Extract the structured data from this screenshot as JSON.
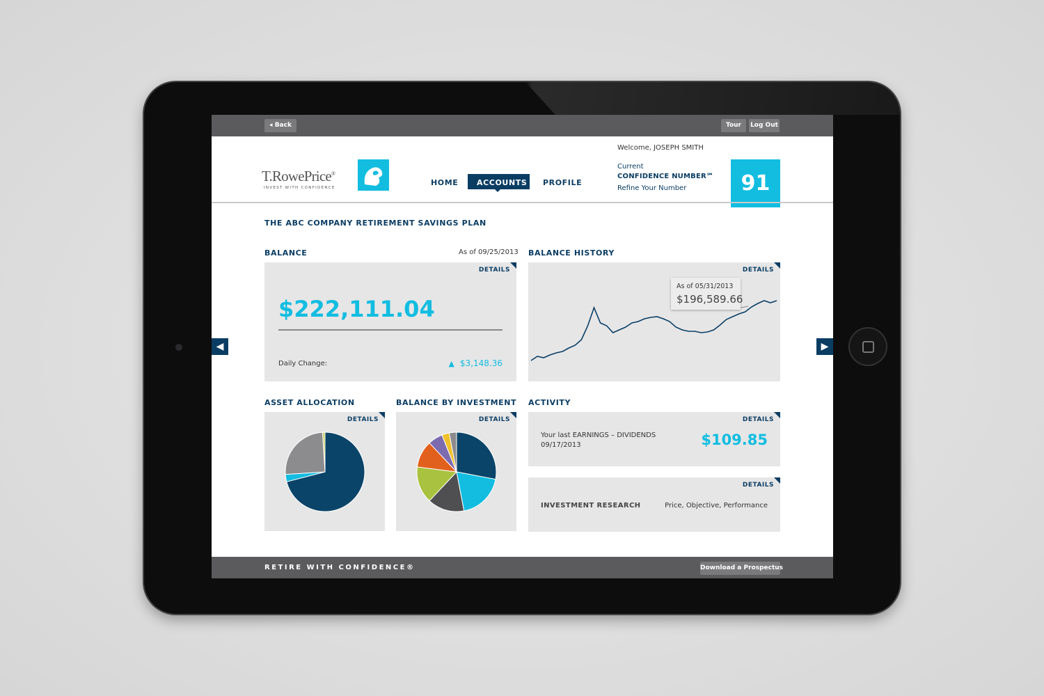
{
  "top_bar": {
    "back": "Back",
    "tour": "Tour",
    "logout": "Log Out"
  },
  "header": {
    "logo": "T.RowePrice",
    "logo_mark": "®",
    "tagline": "INVEST WITH CONFIDENCE",
    "nav": [
      "HOME",
      "ACCOUNTS",
      "PROFILE"
    ],
    "welcome": "Welcome, JOSEPH SMITH",
    "confidence_current": "Current",
    "confidence_label": "CONFIDENCE NUMBER℠",
    "confidence_link": "Refine Your Number",
    "confidence_number": 91
  },
  "plan_title": "THE ABC COMPANY RETIREMENT SAVINGS PLAN",
  "balance": {
    "title": "BALANCE",
    "as_of": "As of 09/25/2013",
    "details": "DETAILS",
    "amount": "$222,111.04",
    "daily_change_label": "Daily Change:",
    "daily_change": "$3,148.36"
  },
  "balance_history": {
    "title": "BALANCE HISTORY",
    "details": "DETAILS",
    "tooltip_date": "As of 05/31/2013",
    "tooltip_value": "$196,589.66",
    "chart_data": {
      "type": "line",
      "color": "#0b3d63",
      "values": [
        150000,
        153600,
        152400,
        154800,
        156600,
        157800,
        160800,
        163200,
        168000,
        180000,
        195600,
        182400,
        180000,
        174000,
        176400,
        178800,
        182400,
        183600,
        186000,
        187200,
        187800,
        186000,
        183600,
        178800,
        176400,
        175200,
        175200,
        174000,
        174600,
        176400,
        180600,
        185400,
        187800,
        190200,
        192000,
        196200,
        199200,
        201600,
        199800,
        201600
      ]
    }
  },
  "asset_allocation": {
    "title": "ASSET ALLOCATION",
    "details": "DETAILS",
    "chart_data": {
      "type": "pie",
      "values": [
        71,
        3,
        25,
        1
      ],
      "colors": [
        "#0b4469",
        "#12bde0",
        "#8c8c8e",
        "#c9d36e"
      ]
    }
  },
  "balance_by_investment": {
    "title": "BALANCE BY INVESTMENT",
    "details": "DETAILS",
    "chart_data": {
      "type": "pie",
      "values": [
        28,
        19,
        15,
        15,
        11,
        6,
        3,
        3
      ],
      "colors": [
        "#0b4469",
        "#12bde0",
        "#4f4f51",
        "#a9c23f",
        "#e2601d",
        "#7d6bb0",
        "#f0c02c",
        "#8c8c8e"
      ]
    }
  },
  "activity": {
    "title": "ACTIVITY",
    "details": "DETAILS",
    "text": "Your last EARNINGS – DIVIDENDS",
    "date": "09/17/2013",
    "amount": "$109.85"
  },
  "research": {
    "details": "DETAILS",
    "title": "INVESTMENT RESEARCH",
    "text": "Price, Objective, Performance"
  },
  "footer": {
    "tagline": "RETIRE WITH CONFIDENCE®",
    "button": "Download a Prospectus"
  }
}
